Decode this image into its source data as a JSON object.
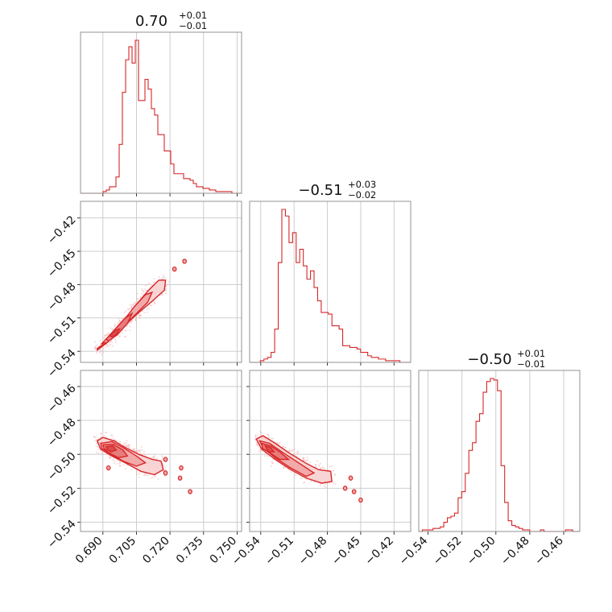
{
  "colors": {
    "accent": "#d62728",
    "contour_fills": [
      "#f9d4d4",
      "#f2a9a9",
      "#e87b7b",
      "#dc4c4c"
    ],
    "scatter": "#f0a8a8",
    "grid": "#c8c8c8"
  },
  "chart_data": {
    "type": "corner",
    "parameters": [
      {
        "id": "p1",
        "range": [
          0.68,
          0.752
        ],
        "ticks": [
          0.69,
          0.705,
          0.72,
          0.735,
          0.75
        ],
        "tick_labels": [
          "0.690",
          "0.705",
          "0.720",
          "0.735",
          "0.750"
        ],
        "title": {
          "value": "0.70",
          "plus": "+0.01",
          "minus": "−0.01"
        }
      },
      {
        "id": "p2",
        "range": [
          -0.55,
          -0.405
        ],
        "ticks": [
          -0.54,
          -0.51,
          -0.48,
          -0.45,
          -0.42
        ],
        "tick_labels": [
          "−0.54",
          "−0.51",
          "−0.48",
          "−0.45",
          "−0.42"
        ],
        "title": {
          "value": "−0.51",
          "plus": "+0.03",
          "minus": "−0.02"
        }
      },
      {
        "id": "p3",
        "range": [
          -0.5455,
          -0.4505
        ],
        "ticks": [
          -0.54,
          -0.52,
          -0.5,
          -0.48,
          -0.46
        ],
        "tick_labels": [
          "−0.54",
          "−0.52",
          "−0.50",
          "−0.48",
          "−0.46"
        ],
        "title": {
          "value": "−0.50",
          "plus": "+0.01",
          "minus": "−0.01"
        }
      }
    ],
    "histograms": [
      {
        "param": "p1",
        "bins": [
          0.68,
          0.752
        ],
        "counts": [
          0,
          0,
          0,
          0,
          0,
          0,
          0,
          1,
          2,
          4,
          4,
          10,
          30,
          62,
          82,
          90,
          80,
          94,
          57,
          57,
          70,
          64,
          52,
          48,
          36,
          36,
          26,
          26,
          18,
          12,
          12,
          12,
          9,
          9,
          8,
          6,
          4,
          4,
          3,
          3,
          2,
          2,
          1,
          1,
          1,
          1,
          1,
          0,
          0,
          0
        ]
      },
      {
        "param": "p2",
        "bins": [
          -0.55,
          -0.405
        ],
        "counts": [
          0,
          0,
          0,
          1,
          2,
          3,
          6,
          20,
          60,
          92,
          88,
          72,
          78,
          60,
          68,
          58,
          50,
          55,
          45,
          37,
          30,
          30,
          29,
          22,
          22,
          20,
          10,
          10,
          9,
          9,
          8,
          6,
          6,
          4,
          3,
          3,
          2,
          2,
          1,
          1,
          1,
          1,
          0,
          0,
          0
        ]
      },
      {
        "param": "p3",
        "bins": [
          -0.5455,
          -0.4505
        ],
        "counts": [
          0,
          1,
          1,
          1,
          2,
          2,
          3,
          6,
          9,
          10,
          12,
          22,
          26,
          38,
          53,
          58,
          72,
          77,
          91,
          98,
          100,
          99,
          92,
          43,
          19,
          7,
          4,
          3,
          2,
          1,
          1,
          0,
          0,
          0,
          1,
          0,
          0,
          0,
          0,
          0,
          0,
          1,
          1,
          0,
          0
        ]
      }
    ],
    "pairs": [
      {
        "x": "p1",
        "y": "p2",
        "correlation": "positive",
        "levels": [
          [
            [
              0.6875,
              -0.5375
            ],
            [
              0.69,
              -0.534
            ],
            [
              0.695,
              -0.524
            ],
            [
              0.7,
              -0.512
            ],
            [
              0.705,
              -0.498
            ],
            [
              0.71,
              -0.486
            ],
            [
              0.715,
              -0.476
            ],
            [
              0.718,
              -0.476
            ],
            [
              0.7175,
              -0.485
            ],
            [
              0.712,
              -0.495
            ],
            [
              0.705,
              -0.507
            ],
            [
              0.698,
              -0.52
            ],
            [
              0.692,
              -0.532
            ],
            [
              0.6875,
              -0.539
            ]
          ],
          [
            [
              0.6895,
              -0.533
            ],
            [
              0.694,
              -0.524
            ],
            [
              0.699,
              -0.513
            ],
            [
              0.704,
              -0.5
            ],
            [
              0.709,
              -0.489
            ],
            [
              0.712,
              -0.487
            ],
            [
              0.71,
              -0.496
            ],
            [
              0.704,
              -0.508
            ],
            [
              0.6975,
              -0.521
            ],
            [
              0.692,
              -0.532
            ]
          ],
          [
            [
              0.6915,
              -0.529
            ],
            [
              0.6955,
              -0.52
            ],
            [
              0.6995,
              -0.511
            ],
            [
              0.703,
              -0.506
            ],
            [
              0.701,
              -0.515
            ],
            [
              0.6965,
              -0.525
            ],
            [
              0.6925,
              -0.531
            ]
          ],
          [
            [
              0.693,
              -0.526
            ],
            [
              0.6955,
              -0.521
            ],
            [
              0.6975,
              -0.52
            ],
            [
              0.696,
              -0.525
            ],
            [
              0.694,
              -0.527
            ]
          ]
        ],
        "islands": [
          [
            0.7265,
            -0.459
          ],
          [
            0.722,
            -0.466
          ]
        ]
      },
      {
        "x": "p1",
        "y": "p3",
        "correlation": "negative",
        "levels": [
          [
            [
              0.6875,
              -0.492
            ],
            [
              0.69,
              -0.49
            ],
            [
              0.695,
              -0.492
            ],
            [
              0.7,
              -0.496
            ],
            [
              0.706,
              -0.5
            ],
            [
              0.712,
              -0.503
            ],
            [
              0.716,
              -0.504
            ],
            [
              0.717,
              -0.509
            ],
            [
              0.713,
              -0.512
            ],
            [
              0.707,
              -0.51
            ],
            [
              0.7,
              -0.505
            ],
            [
              0.694,
              -0.501
            ],
            [
              0.689,
              -0.497
            ]
          ],
          [
            [
              0.689,
              -0.4935
            ],
            [
              0.694,
              -0.4925
            ],
            [
              0.699,
              -0.496
            ],
            [
              0.705,
              -0.501
            ],
            [
              0.709,
              -0.505
            ],
            [
              0.705,
              -0.507
            ],
            [
              0.699,
              -0.504
            ],
            [
              0.693,
              -0.4995
            ],
            [
              0.6895,
              -0.4965
            ]
          ],
          [
            [
              0.69,
              -0.4945
            ],
            [
              0.6945,
              -0.494
            ],
            [
              0.699,
              -0.4975
            ],
            [
              0.701,
              -0.501
            ],
            [
              0.697,
              -0.502
            ],
            [
              0.6925,
              -0.499
            ],
            [
              0.6905,
              -0.4965
            ]
          ],
          [
            [
              0.6915,
              -0.4955
            ],
            [
              0.6945,
              -0.495
            ],
            [
              0.696,
              -0.4975
            ],
            [
              0.6935,
              -0.4985
            ],
            [
              0.6918,
              -0.497
            ]
          ]
        ],
        "islands": [
          [
            0.718,
            -0.503
          ],
          [
            0.725,
            -0.508
          ],
          [
            0.7245,
            -0.514
          ],
          [
            0.718,
            -0.511
          ],
          [
            0.729,
            -0.522
          ],
          [
            0.6925,
            -0.508
          ]
        ]
      },
      {
        "x": "p2",
        "y": "p3",
        "correlation": "negative",
        "levels": [
          [
            [
              -0.544,
              -0.491
            ],
            [
              -0.538,
              -0.489
            ],
            [
              -0.528,
              -0.493
            ],
            [
              -0.515,
              -0.499
            ],
            [
              -0.5,
              -0.505
            ],
            [
              -0.488,
              -0.509
            ],
            [
              -0.477,
              -0.51
            ],
            [
              -0.476,
              -0.516
            ],
            [
              -0.485,
              -0.517
            ],
            [
              -0.499,
              -0.514
            ],
            [
              -0.513,
              -0.509
            ],
            [
              -0.527,
              -0.503
            ],
            [
              -0.539,
              -0.497
            ]
          ],
          [
            [
              -0.541,
              -0.492
            ],
            [
              -0.532,
              -0.4935
            ],
            [
              -0.52,
              -0.499
            ],
            [
              -0.506,
              -0.505
            ],
            [
              -0.492,
              -0.511
            ],
            [
              -0.499,
              -0.513
            ],
            [
              -0.513,
              -0.508
            ],
            [
              -0.527,
              -0.502
            ],
            [
              -0.538,
              -0.496
            ]
          ],
          [
            [
              -0.539,
              -0.4935
            ],
            [
              -0.531,
              -0.495
            ],
            [
              -0.522,
              -0.499
            ],
            [
              -0.515,
              -0.503
            ],
            [
              -0.523,
              -0.503
            ],
            [
              -0.532,
              -0.499
            ],
            [
              -0.5385,
              -0.4965
            ]
          ],
          [
            [
              -0.536,
              -0.495
            ],
            [
              -0.531,
              -0.496
            ],
            [
              -0.528,
              -0.4985
            ],
            [
              -0.533,
              -0.4985
            ]
          ]
        ],
        "islands": [
          [
            -0.459,
            -0.514
          ],
          [
            -0.464,
            -0.52
          ],
          [
            -0.456,
            -0.522
          ],
          [
            -0.45,
            -0.527
          ]
        ]
      }
    ]
  }
}
